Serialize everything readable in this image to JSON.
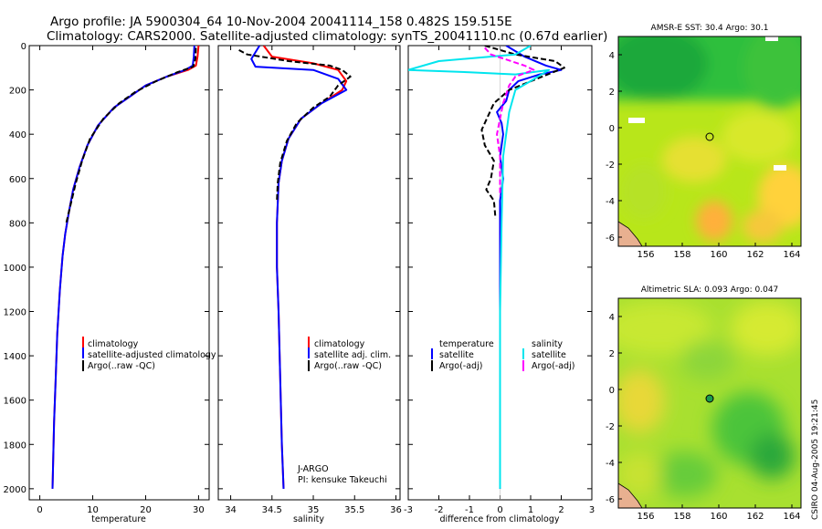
{
  "title": {
    "line1": "Argo profile: JA 5900304_64 10-Nov-2004 20041114_158 0.482S 159.515E",
    "line2": "Climatology: CARS2000. Satellite-adjusted climatology: synTS_20041110.nc (0.67d earlier)"
  },
  "credit": "CSIRO 04-Aug-2005 19:21:45",
  "colors": {
    "climatology": "#ff0000",
    "satellite": "#0000ff",
    "argo": "#000000",
    "sal_satellite": "#00e5ee",
    "sal_argo": "#ff00ff"
  },
  "chart_data": [
    {
      "id": "temperature",
      "type": "line",
      "xlabel": "temperature",
      "xlim": [
        -2,
        32
      ],
      "ylim": [
        2050,
        0
      ],
      "xticks": [
        0,
        10,
        20,
        30
      ],
      "yticks": [
        0,
        200,
        400,
        600,
        800,
        1000,
        1200,
        1400,
        1600,
        1800,
        2000
      ],
      "legend": [
        "climatology",
        "satellite-adjusted climatology",
        "Argo(..raw -QC)"
      ],
      "series": [
        {
          "name": "climatology",
          "color": "#ff0000",
          "dash": false,
          "points": [
            [
              30,
              0
            ],
            [
              29.8,
              50
            ],
            [
              29.5,
              90
            ],
            [
              28,
              110
            ],
            [
              24,
              140
            ],
            [
              20,
              180
            ],
            [
              17,
              230
            ],
            [
              14,
              280
            ],
            [
              11,
              360
            ],
            [
              9,
              450
            ],
            [
              7.5,
              550
            ],
            [
              6.3,
              650
            ],
            [
              5.5,
              750
            ],
            [
              4.8,
              850
            ],
            [
              4.3,
              950
            ],
            [
              3.8,
              1100
            ],
            [
              3.3,
              1300
            ],
            [
              3,
              1500
            ],
            [
              2.7,
              1700
            ],
            [
              2.4,
              2000
            ]
          ]
        },
        {
          "name": "satellite-adjusted climatology",
          "color": "#0000ff",
          "dash": false,
          "points": [
            [
              29.2,
              0
            ],
            [
              29.1,
              50
            ],
            [
              28.9,
              90
            ],
            [
              27.5,
              110
            ],
            [
              24,
              140
            ],
            [
              20,
              180
            ],
            [
              17,
              230
            ],
            [
              14,
              280
            ],
            [
              11,
              360
            ],
            [
              9,
              450
            ],
            [
              7.5,
              550
            ],
            [
              6.3,
              650
            ],
            [
              5.5,
              750
            ],
            [
              4.8,
              850
            ],
            [
              4.3,
              950
            ],
            [
              3.8,
              1100
            ],
            [
              3.3,
              1300
            ],
            [
              3,
              1500
            ],
            [
              2.7,
              1700
            ],
            [
              2.4,
              2000
            ]
          ]
        },
        {
          "name": "Argo(..raw -QC)",
          "color": "#000000",
          "dash": true,
          "points": [
            [
              29.5,
              10
            ],
            [
              29.4,
              60
            ],
            [
              29,
              95
            ],
            [
              26,
              120
            ],
            [
              22,
              160
            ],
            [
              18,
              210
            ],
            [
              15,
              260
            ],
            [
              12,
              330
            ],
            [
              9.5,
              420
            ],
            [
              8,
              520
            ],
            [
              6.8,
              620
            ],
            [
              5.8,
              720
            ],
            [
              5,
              800
            ]
          ]
        }
      ],
      "annotations": []
    },
    {
      "id": "salinity",
      "type": "line",
      "xlabel": "salinity",
      "xlim": [
        33.85,
        36.05
      ],
      "ylim": [
        2050,
        0
      ],
      "xticks": [
        34,
        34.5,
        35,
        35.5,
        36
      ],
      "legend": [
        "climatology",
        "satellite adj. clim.",
        "Argo(..raw -QC)"
      ],
      "series": [
        {
          "name": "climatology",
          "color": "#ff0000",
          "dash": false,
          "points": [
            [
              34.4,
              0
            ],
            [
              34.5,
              50
            ],
            [
              35.0,
              80
            ],
            [
              35.3,
              110
            ],
            [
              35.4,
              160
            ],
            [
              35.35,
              200
            ],
            [
              35.1,
              260
            ],
            [
              34.85,
              330
            ],
            [
              34.7,
              420
            ],
            [
              34.62,
              520
            ],
            [
              34.58,
              620
            ],
            [
              34.56,
              800
            ],
            [
              34.56,
              1000
            ],
            [
              34.58,
              1200
            ],
            [
              34.6,
              1500
            ],
            [
              34.62,
              1800
            ],
            [
              34.64,
              2000
            ]
          ]
        },
        {
          "name": "satellite adj. clim.",
          "color": "#0000ff",
          "dash": false,
          "points": [
            [
              34.35,
              0
            ],
            [
              34.25,
              60
            ],
            [
              34.3,
              95
            ],
            [
              35.0,
              110
            ],
            [
              35.3,
              150
            ],
            [
              35.4,
              200
            ],
            [
              35.1,
              260
            ],
            [
              34.85,
              330
            ],
            [
              34.7,
              420
            ],
            [
              34.62,
              520
            ],
            [
              34.58,
              620
            ],
            [
              34.56,
              800
            ],
            [
              34.56,
              1000
            ],
            [
              34.58,
              1200
            ],
            [
              34.6,
              1500
            ],
            [
              34.62,
              1800
            ],
            [
              34.64,
              2000
            ]
          ]
        },
        {
          "name": "Argo(..raw -QC)",
          "color": "#000000",
          "dash": true,
          "points": [
            [
              34.1,
              20
            ],
            [
              34.2,
              40
            ],
            [
              34.7,
              70
            ],
            [
              35.2,
              90
            ],
            [
              35.35,
              110
            ],
            [
              35.45,
              140
            ],
            [
              35.3,
              180
            ],
            [
              35.2,
              230
            ],
            [
              35.0,
              280
            ],
            [
              34.8,
              350
            ],
            [
              34.68,
              430
            ],
            [
              34.6,
              530
            ],
            [
              34.57,
              620
            ],
            [
              34.56,
              700
            ]
          ]
        }
      ],
      "annotations": [
        "J-ARGO",
        "PI: kensuke Takeuchi"
      ]
    },
    {
      "id": "difference",
      "type": "line",
      "xlabel": "difference from climatology",
      "xlim": [
        -3,
        3
      ],
      "ylim": [
        2050,
        0
      ],
      "xticks": [
        -3,
        -2,
        -1,
        0,
        1,
        2,
        3
      ],
      "legend_left_title": "temperature",
      "legend_left": [
        "satellite",
        "Argo(-adj)"
      ],
      "legend_right_title": "salinity",
      "legend_right": [
        "satellite",
        "Argo(-adj)"
      ],
      "series": [
        {
          "name": "temperature satellite",
          "color": "#0000ff",
          "dash": false,
          "points": [
            [
              0.2,
              0
            ],
            [
              0.8,
              50
            ],
            [
              1.5,
              90
            ],
            [
              2.0,
              110
            ],
            [
              1.3,
              130
            ],
            [
              0.6,
              160
            ],
            [
              0.3,
              200
            ],
            [
              0.2,
              250
            ],
            [
              -0.1,
              300
            ],
            [
              0.05,
              350
            ],
            [
              0.1,
              400
            ],
            [
              0.0,
              500
            ],
            [
              0.05,
              550
            ],
            [
              0.1,
              600
            ],
            [
              0.0,
              700
            ],
            [
              0.0,
              900
            ],
            [
              0.0,
              1100
            ],
            [
              0.0,
              1500
            ],
            [
              0.0,
              2000
            ]
          ]
        },
        {
          "name": "temperature Argo(-adj)",
          "color": "#000000",
          "dash": true,
          "points": [
            [
              -0.5,
              0
            ],
            [
              0.5,
              40
            ],
            [
              1.8,
              70
            ],
            [
              2.1,
              100
            ],
            [
              1.2,
              150
            ],
            [
              0.3,
              200
            ],
            [
              -0.2,
              260
            ],
            [
              -0.6,
              380
            ],
            [
              -0.5,
              450
            ],
            [
              -0.2,
              520
            ],
            [
              -0.3,
              600
            ],
            [
              -0.45,
              650
            ],
            [
              -0.2,
              700
            ],
            [
              -0.15,
              780
            ]
          ]
        },
        {
          "name": "salinity satellite",
          "color": "#00e5ee",
          "dash": false,
          "points": [
            [
              1.0,
              0
            ],
            [
              0.5,
              40
            ],
            [
              -2.0,
              70
            ],
            [
              -3.0,
              110
            ],
            [
              -1.0,
              120
            ],
            [
              0.5,
              130
            ],
            [
              1.6,
              110
            ],
            [
              1.0,
              160
            ],
            [
              0.5,
              200
            ],
            [
              0.3,
              300
            ],
            [
              0.1,
              500
            ],
            [
              0.05,
              800
            ],
            [
              0.0,
              1200
            ],
            [
              0.0,
              2000
            ]
          ]
        },
        {
          "name": "salinity Argo(-adj)",
          "color": "#ff00ff",
          "dash": true,
          "points": [
            [
              -0.5,
              10
            ],
            [
              -0.3,
              40
            ],
            [
              0.8,
              90
            ],
            [
              1.1,
              110
            ],
            [
              0.5,
              140
            ],
            [
              0.3,
              180
            ],
            [
              0.1,
              260
            ],
            [
              0.0,
              330
            ],
            [
              -0.1,
              400
            ],
            [
              0.0,
              500
            ],
            [
              0.0,
              600
            ],
            [
              0.0,
              680
            ]
          ]
        }
      ]
    }
  ],
  "maps": [
    {
      "id": "sst_map",
      "title": "AMSR-E SST: 30.4 Argo: 30.1",
      "xlim": [
        154.5,
        164.5
      ],
      "ylim": [
        -6.5,
        5
      ],
      "xticks": [
        156,
        158,
        160,
        162,
        164
      ],
      "yticks": [
        -6,
        -4,
        -2,
        0,
        2,
        4
      ],
      "profile_marker": [
        159.5,
        -0.5
      ]
    },
    {
      "id": "sla_map",
      "title": "Altimetric SLA: 0.093 Argo: 0.047",
      "xlim": [
        154.5,
        164.5
      ],
      "ylim": [
        -6.5,
        5
      ],
      "xticks": [
        156,
        158,
        160,
        162,
        164
      ],
      "yticks": [
        -6,
        -4,
        -2,
        0,
        2,
        4
      ],
      "profile_marker": [
        159.5,
        -0.5
      ]
    }
  ]
}
